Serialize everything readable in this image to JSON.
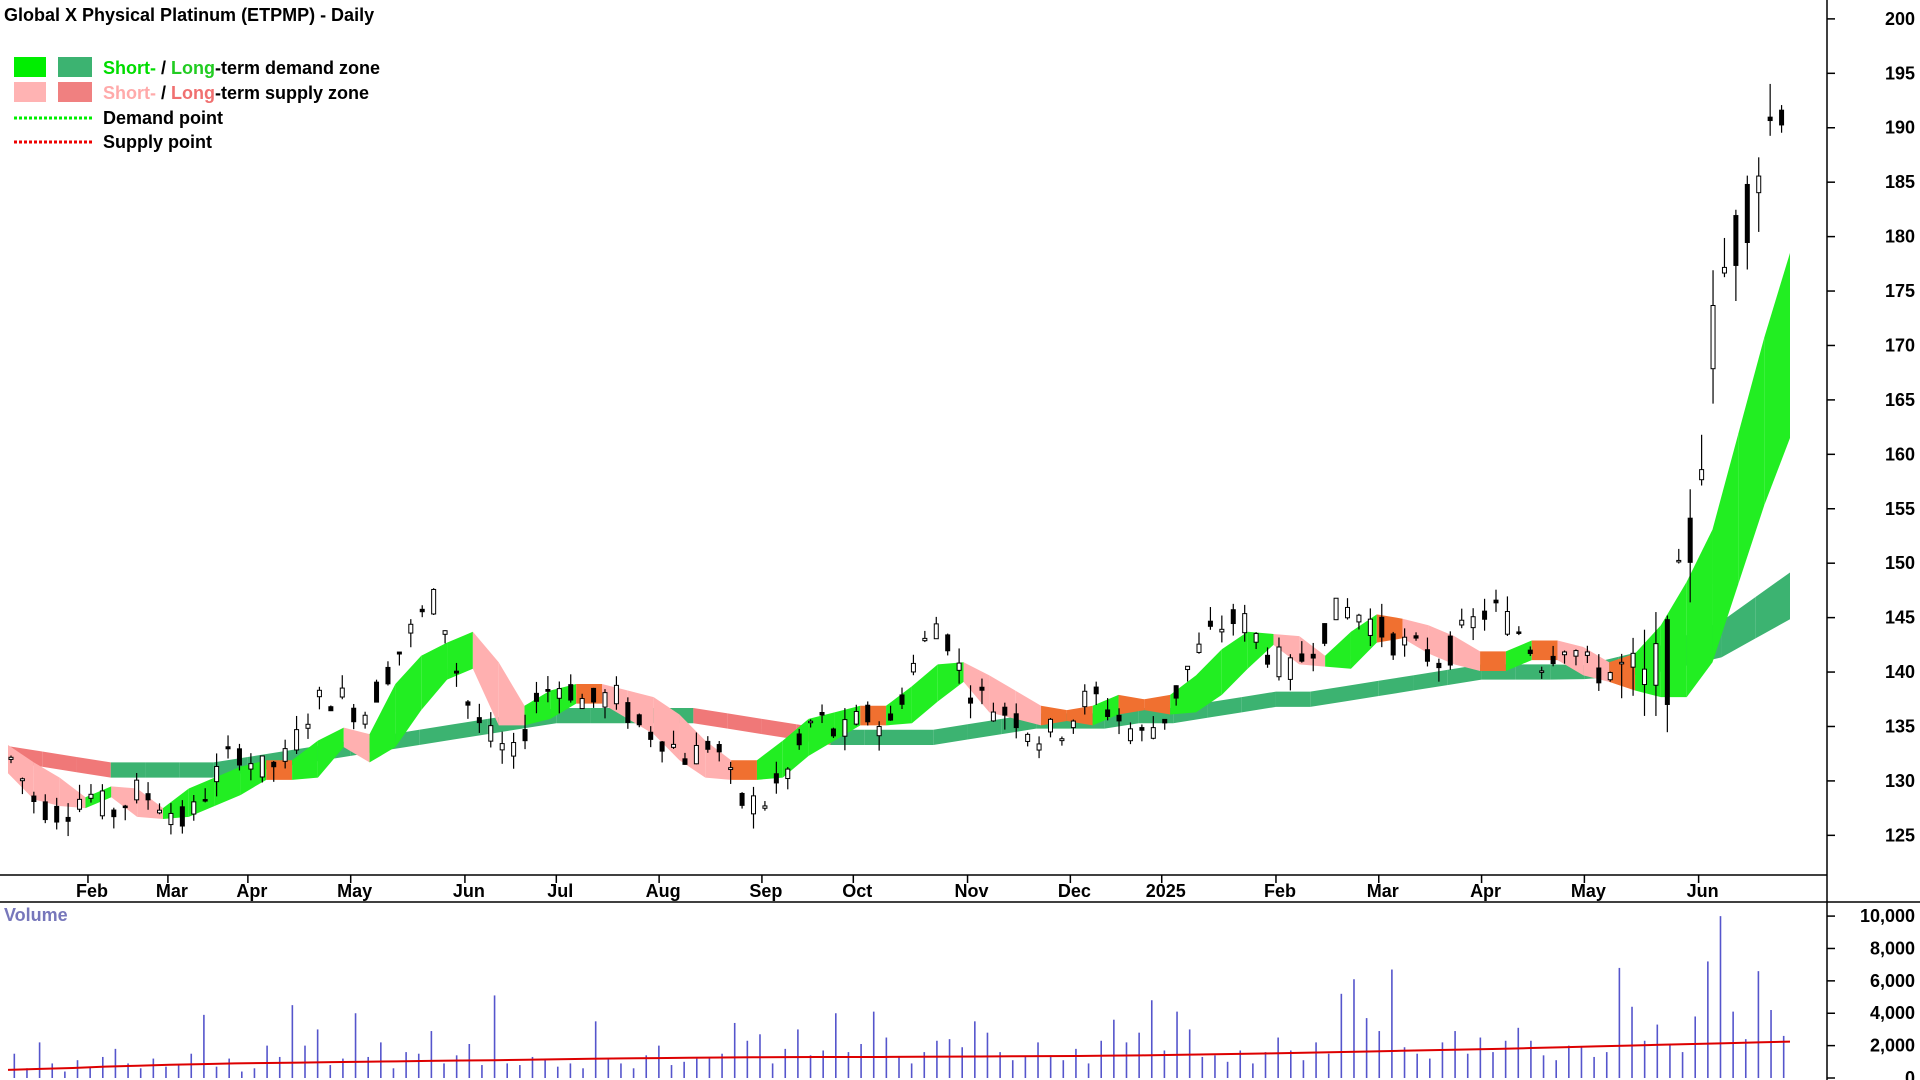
{
  "title": "Global X Physical Platinum (ETPMP) - Daily",
  "legend": {
    "demand_zone": {
      "short": "Short-",
      "sep": " / ",
      "long": "Long",
      "rest": "-term demand zone",
      "short_color": "#00ee00",
      "long_color": "#3cb371"
    },
    "supply_zone": {
      "short": "Short-",
      "sep": " / ",
      "long": "Long",
      "rest": "-term supply zone",
      "short_color": "#ffb3b3",
      "long_color": "#f08080"
    },
    "demand_point": "Demand point",
    "supply_point": "Supply point"
  },
  "volume_label": "Volume",
  "colors": {
    "short_demand": "#22ee22",
    "long_demand": "#3cb371",
    "short_supply": "#ffb0b0",
    "long_supply": "#f07878",
    "transition": "#f07030",
    "volume_bar": "#5555cc",
    "volume_ma": "#dd0000",
    "label_volume": "#7777bb"
  },
  "chart_data": [
    {
      "type": "candlestick",
      "title": "Global X Physical Platinum (ETPMP) - Daily",
      "y_ticks": [
        "125",
        "130",
        "135",
        "140",
        "145",
        "150",
        "155",
        "160",
        "165",
        "170",
        "175",
        "180",
        "185",
        "190",
        "195",
        "200"
      ],
      "ylim": [
        122,
        201
      ],
      "x_ticks": [
        "Feb",
        "Mar",
        "Apr",
        "May",
        "Jun",
        "Jul",
        "Aug",
        "Sep",
        "Oct",
        "Nov",
        "Dec",
        "2025",
        "Feb",
        "Mar",
        "Apr",
        "May",
        "Jun"
      ],
      "x_tick_index": [
        7,
        14,
        21,
        30,
        40,
        48,
        57,
        66,
        74,
        84,
        93,
        101,
        111,
        120,
        129,
        138,
        148
      ],
      "close_weekly": [
        132,
        128,
        127,
        129,
        127,
        129,
        128,
        126,
        130,
        133,
        131,
        132,
        137,
        138,
        136,
        140,
        144,
        147,
        138,
        134,
        132,
        138,
        139,
        137,
        138,
        135,
        134,
        132,
        134,
        128,
        128,
        131,
        136,
        134,
        136,
        135,
        141,
        145,
        139,
        137,
        136,
        134,
        135,
        138,
        136,
        134,
        136,
        141,
        144,
        145,
        142,
        140,
        143,
        146,
        145,
        143,
        142,
        141,
        144,
        146,
        144,
        141,
        143,
        140,
        140,
        138,
        141,
        153,
        175,
        182,
        190,
        196
      ],
      "short_zone_center": [
        132,
        130,
        129,
        128,
        129,
        128,
        127,
        128,
        129,
        130,
        131,
        131,
        132,
        134,
        133,
        136,
        139,
        141,
        142,
        138,
        136,
        137,
        138,
        138,
        137,
        136,
        134,
        132,
        131,
        131,
        132,
        134,
        135,
        136,
        136,
        137,
        139,
        140,
        138,
        137,
        136,
        136,
        136,
        137,
        137,
        137,
        138,
        140,
        142,
        143,
        142,
        141,
        142,
        144,
        144,
        143,
        142,
        141,
        141,
        142,
        142,
        141,
        140,
        140,
        141,
        143,
        147,
        155,
        163,
        170
      ],
      "long_zone_center": [
        132.5,
        132,
        131.5,
        131,
        131,
        131,
        131,
        131.5,
        132,
        132.5,
        133,
        133.5,
        134,
        134.5,
        135,
        135.5,
        136,
        136,
        136,
        136,
        136,
        135.5,
        135,
        134.5,
        134,
        134,
        134,
        134,
        134.5,
        135,
        135.5,
        135.5,
        135.5,
        136,
        136,
        136.5,
        137,
        137.5,
        137.5,
        138,
        138.5,
        139,
        139.5,
        140,
        140,
        140,
        140,
        140.5,
        141,
        142,
        143,
        145,
        147
      ],
      "volume": {
        "y_ticks": [
          "0",
          "2,000",
          "4,000",
          "6,000",
          "8,000",
          "10,000"
        ],
        "ylim": [
          0,
          10500
        ],
        "bars": [
          1500,
          600,
          2200,
          900,
          400,
          1100,
          700,
          1300,
          1800,
          900,
          600,
          1200,
          700,
          800,
          1500,
          3900,
          700,
          1200,
          400,
          600,
          2000,
          1300,
          4500,
          2000,
          3000,
          800,
          1200,
          4000,
          1300,
          2200,
          600,
          1600,
          1500,
          2900,
          900,
          1400,
          2100,
          800,
          5100,
          900,
          800,
          1300,
          1100,
          700,
          900,
          600,
          3500,
          1200,
          900,
          600,
          1400,
          2000,
          800,
          1000,
          1200,
          1300,
          1500,
          3400,
          2300,
          2700,
          900,
          1800,
          3000,
          1400,
          1700,
          4000,
          1600,
          2100,
          4100,
          2500,
          1300,
          900,
          1600,
          2300,
          2400,
          1900,
          3500,
          2800,
          1600,
          1100,
          1300,
          2200,
          1400,
          1100,
          1800,
          900,
          2300,
          3600,
          2200,
          2800,
          4800,
          1700,
          4100,
          3000,
          1300,
          1400,
          1000,
          1700,
          900,
          1600,
          2500,
          1700,
          1100,
          2200,
          1500,
          5200,
          6100,
          3700,
          2900,
          6700,
          1900,
          1500,
          1200,
          2200,
          2900,
          1500,
          2500,
          1600,
          2300,
          3100,
          2300,
          1400,
          1100,
          2000,
          1900,
          1300,
          1600,
          6800,
          4400,
          2300,
          3300,
          2100,
          1600,
          3800,
          7200,
          10000,
          4100,
          2400,
          6600,
          4200,
          2600
        ],
        "ma": [
          500,
          560,
          620,
          700,
          760,
          820,
          860,
          900,
          930,
          950,
          980,
          1000,
          1030,
          1060,
          1080,
          1100,
          1130,
          1160,
          1190,
          1210,
          1230,
          1250,
          1270,
          1280,
          1290,
          1300,
          1300,
          1300,
          1310,
          1320,
          1330,
          1340,
          1350,
          1360,
          1380,
          1400,
          1430,
          1460,
          1490,
          1520,
          1560,
          1600,
          1640,
          1680,
          1720,
          1760,
          1800,
          1850,
          1900,
          1950,
          2000,
          2050,
          2100,
          2150,
          2200,
          2250
        ]
      }
    }
  ]
}
